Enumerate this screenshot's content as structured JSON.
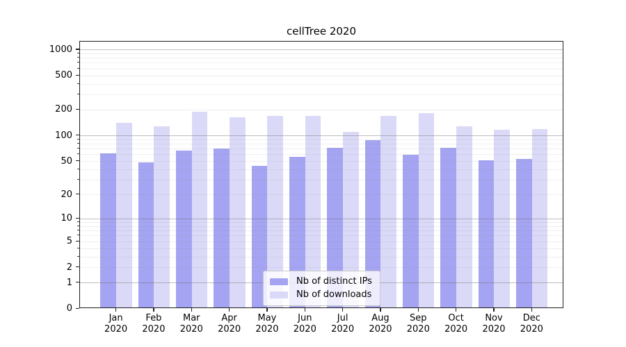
{
  "chart_data": {
    "type": "bar",
    "title": "cellTree 2020",
    "categories": [
      "Jan",
      "Feb",
      "Mar",
      "Apr",
      "May",
      "Jun",
      "Jul",
      "Aug",
      "Sep",
      "Oct",
      "Nov",
      "Dec"
    ],
    "category_year_suffix": "2020",
    "series": [
      {
        "name": "Nb of distinct IPs",
        "color": "#a4a4f2",
        "values": [
          60,
          47,
          65,
          68,
          43,
          54,
          70,
          85,
          58,
          69,
          50,
          52
        ]
      },
      {
        "name": "Nb of downloads",
        "color": "#dadaf8",
        "values": [
          136,
          125,
          185,
          158,
          163,
          163,
          107,
          165,
          178,
          124,
          114,
          115
        ]
      }
    ],
    "yscale": "log1p",
    "yticks": [
      0,
      1,
      2,
      5,
      10,
      20,
      50,
      100,
      200,
      500,
      1000
    ],
    "ylim": [
      0,
      1250
    ],
    "xlabel": "",
    "ylabel": "",
    "grid": true,
    "legend_position": "lower center"
  },
  "colors": {
    "background": "#ffffff",
    "spine": "#1c1c1c",
    "bar_distinct_ips": "#a4a4f2",
    "bar_downloads": "#dadaf8"
  }
}
